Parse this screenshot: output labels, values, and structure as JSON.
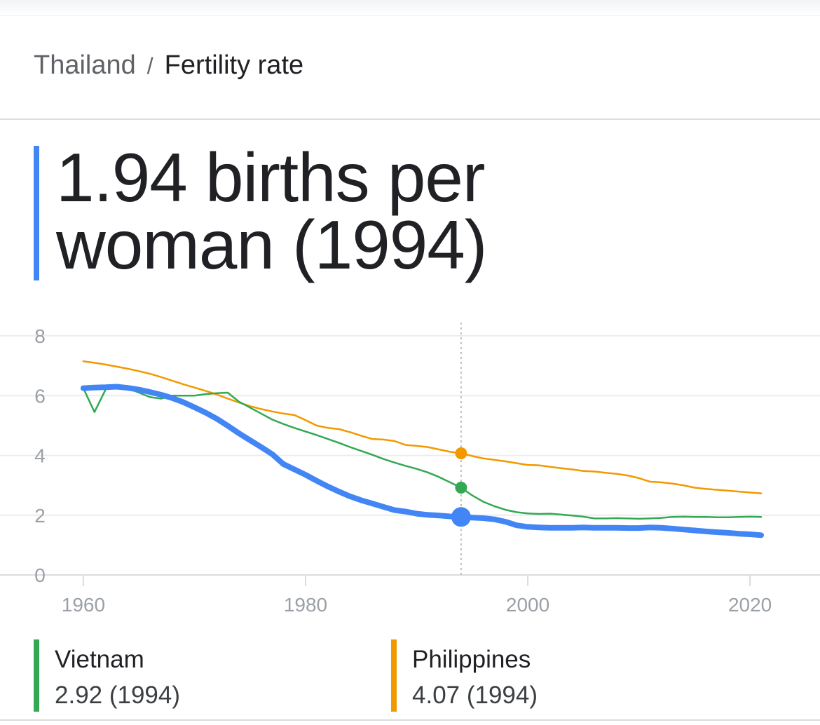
{
  "chart_data": {
    "type": "line",
    "title": "Fertility rate",
    "x": [
      1960,
      1961,
      1962,
      1963,
      1964,
      1965,
      1966,
      1967,
      1968,
      1969,
      1970,
      1971,
      1972,
      1973,
      1974,
      1975,
      1976,
      1977,
      1978,
      1979,
      1980,
      1981,
      1982,
      1983,
      1984,
      1985,
      1986,
      1987,
      1988,
      1989,
      1990,
      1991,
      1992,
      1993,
      1994,
      1995,
      1996,
      1997,
      1998,
      1999,
      2000,
      2001,
      2002,
      2003,
      2004,
      2005,
      2006,
      2007,
      2008,
      2009,
      2010,
      2011,
      2012,
      2013,
      2014,
      2015,
      2016,
      2017,
      2018,
      2019,
      2020,
      2021
    ],
    "series": [
      {
        "name": "Thailand",
        "color": "#4285f4",
        "highlight_label": "1.94 births per woman (1994)",
        "values": [
          6.25,
          6.27,
          6.28,
          6.3,
          6.26,
          6.2,
          6.12,
          6.03,
          5.92,
          5.78,
          5.61,
          5.43,
          5.23,
          4.99,
          4.74,
          4.51,
          4.28,
          4.04,
          3.71,
          3.53,
          3.35,
          3.15,
          2.96,
          2.79,
          2.63,
          2.5,
          2.39,
          2.28,
          2.17,
          2.12,
          2.05,
          2.01,
          1.99,
          1.96,
          1.94,
          1.92,
          1.9,
          1.86,
          1.78,
          1.66,
          1.61,
          1.59,
          1.58,
          1.58,
          1.58,
          1.59,
          1.58,
          1.58,
          1.58,
          1.57,
          1.57,
          1.59,
          1.58,
          1.55,
          1.52,
          1.49,
          1.46,
          1.43,
          1.41,
          1.38,
          1.36,
          1.33
        ]
      },
      {
        "name": "Vietnam",
        "color": "#34a853",
        "highlight_label": "2.92 (1994)",
        "values": [
          6.25,
          5.45,
          6.2,
          6.35,
          6.25,
          6.1,
          5.95,
          5.9,
          6.0,
          6.0,
          6.0,
          6.05,
          6.08,
          6.1,
          5.8,
          5.6,
          5.4,
          5.2,
          5.05,
          4.92,
          4.8,
          4.68,
          4.55,
          4.42,
          4.28,
          4.15,
          4.02,
          3.88,
          3.76,
          3.65,
          3.55,
          3.43,
          3.28,
          3.1,
          2.92,
          2.66,
          2.45,
          2.3,
          2.18,
          2.1,
          2.06,
          2.04,
          2.05,
          2.02,
          1.99,
          1.95,
          1.89,
          1.89,
          1.9,
          1.89,
          1.88,
          1.89,
          1.91,
          1.94,
          1.95,
          1.94,
          1.94,
          1.93,
          1.93,
          1.94,
          1.95,
          1.94
        ]
      },
      {
        "name": "Philippines",
        "color": "#f29900",
        "highlight_label": "4.07 (1994)",
        "values": [
          7.15,
          7.1,
          7.04,
          6.97,
          6.9,
          6.82,
          6.73,
          6.62,
          6.5,
          6.38,
          6.27,
          6.16,
          6.04,
          5.9,
          5.77,
          5.65,
          5.55,
          5.47,
          5.4,
          5.35,
          5.18,
          5.0,
          4.92,
          4.88,
          4.78,
          4.66,
          4.55,
          4.53,
          4.48,
          4.35,
          4.32,
          4.28,
          4.2,
          4.12,
          4.07,
          3.98,
          3.9,
          3.85,
          3.8,
          3.74,
          3.68,
          3.67,
          3.62,
          3.57,
          3.53,
          3.48,
          3.46,
          3.42,
          3.38,
          3.33,
          3.24,
          3.12,
          3.1,
          3.06,
          3.0,
          2.92,
          2.88,
          2.85,
          2.82,
          2.79,
          2.76,
          2.73
        ]
      }
    ],
    "highlight_x": 1994,
    "xlim": [
      1952.5,
      2026.3
    ],
    "xticks": [
      1960,
      1980,
      2000,
      2020
    ],
    "ylim": [
      0,
      8
    ],
    "yticks": [
      0,
      2,
      4,
      6,
      8
    ],
    "grid": true
  }
}
